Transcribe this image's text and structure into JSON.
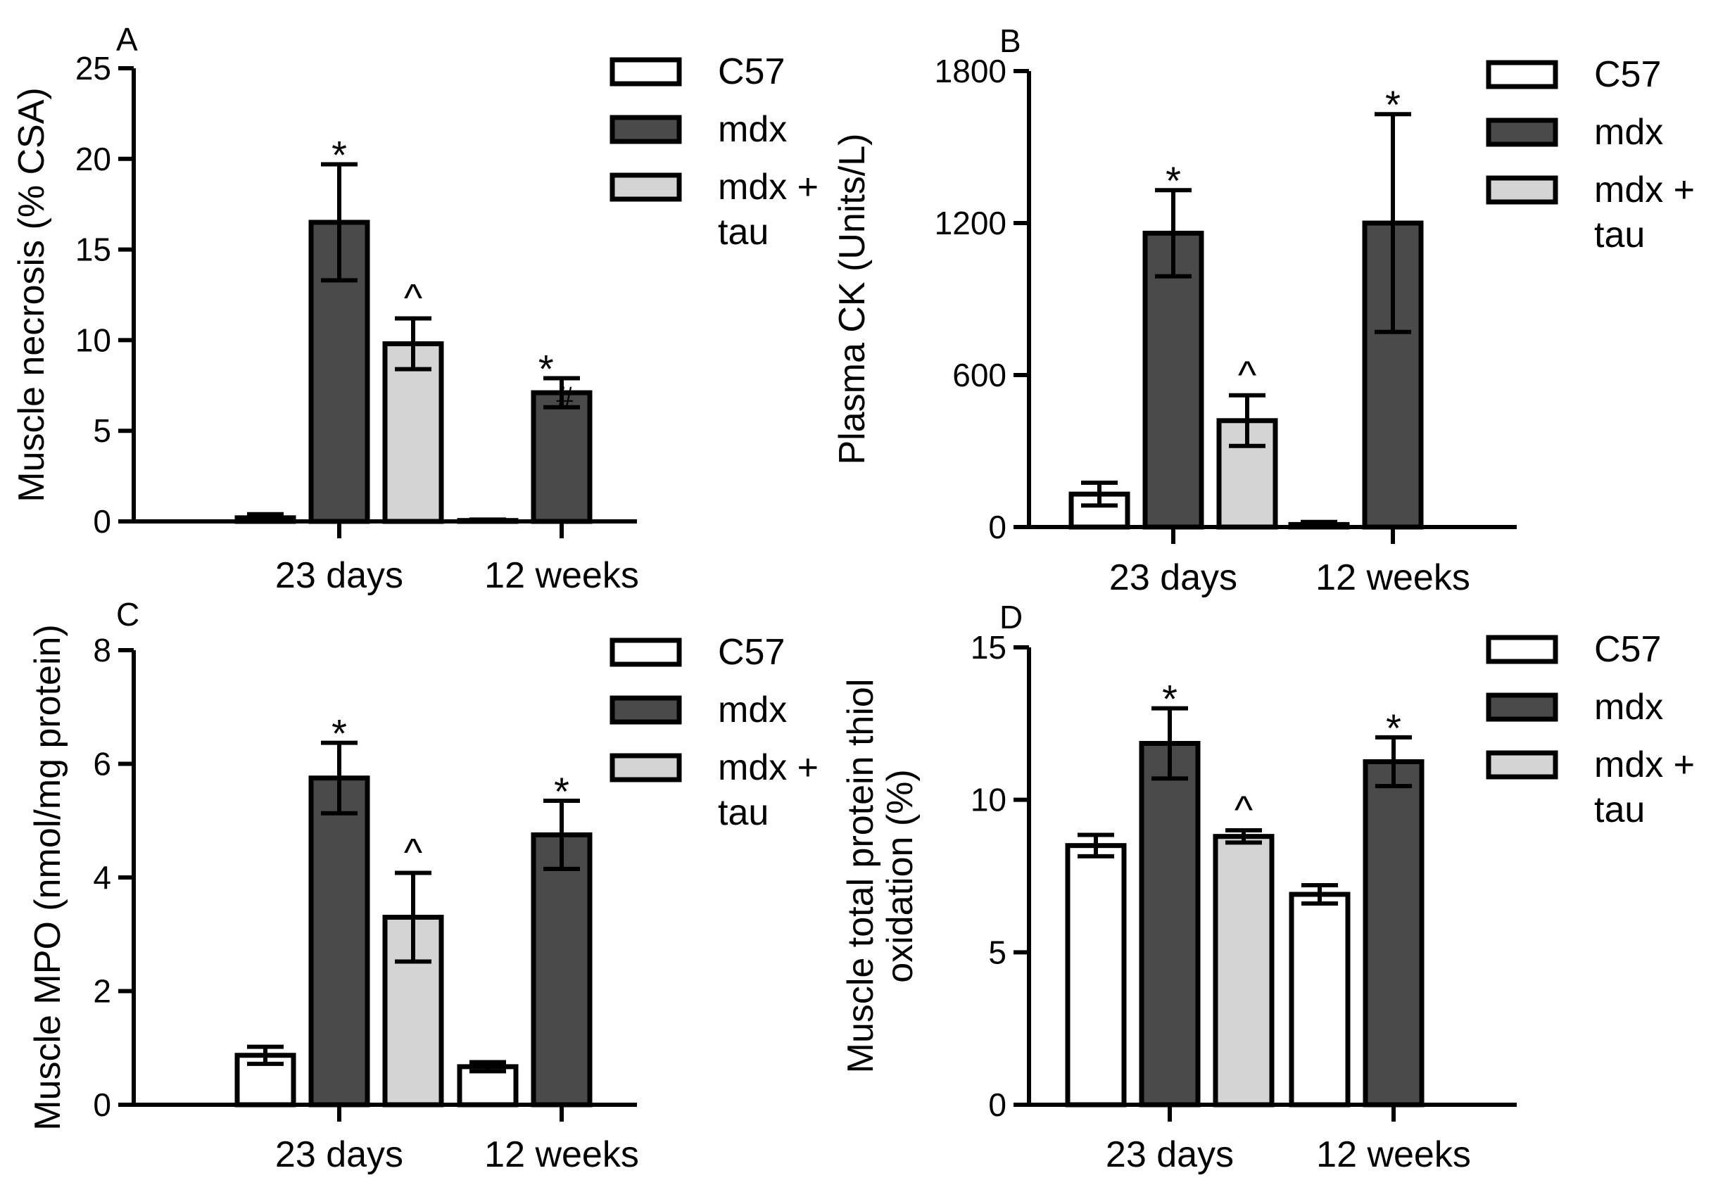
{
  "colors": {
    "C57": "#ffffff",
    "mdx": "#4a4a4a",
    "mdx + tau": "#d4d4d4",
    "stroke": "#000000"
  },
  "chart_data": [
    {
      "panel": "A",
      "type": "bar",
      "categories": [
        "23 days",
        "12 weeks"
      ],
      "ylabel": "Muscle necrosis  (% CSA)",
      "ylim": [
        0,
        25
      ],
      "yticks": [
        0,
        5,
        10,
        15,
        20,
        25
      ],
      "legend": {
        "entries": [
          "C57",
          "mdx",
          "mdx +\ntau"
        ],
        "placement": "top-right"
      },
      "series": [
        {
          "name": "C57",
          "values": [
            0.2,
            0.05
          ],
          "errors": [
            0.2,
            0.05
          ],
          "labels": [
            "",
            ""
          ]
        },
        {
          "name": "mdx",
          "values": [
            16.5,
            7.1
          ],
          "errors": [
            3.2,
            0.8
          ],
          "labels": [
            "*",
            "*#"
          ]
        },
        {
          "name": "mdx + tau",
          "values": [
            9.8,
            null
          ],
          "errors": [
            1.4,
            null
          ],
          "labels": [
            "^",
            ""
          ]
        }
      ]
    },
    {
      "panel": "B",
      "type": "bar",
      "categories": [
        "23 days",
        "12 weeks"
      ],
      "ylabel": "Plasma CK (Units/L)",
      "ylim": [
        0,
        1800
      ],
      "yticks": [
        0,
        600,
        1200,
        1800
      ],
      "legend": {
        "entries": [
          "C57",
          "mdx",
          "mdx +\ntau"
        ],
        "placement": "top-right"
      },
      "series": [
        {
          "name": "C57",
          "values": [
            130,
            10
          ],
          "errors": [
            45,
            10
          ],
          "labels": [
            "",
            ""
          ]
        },
        {
          "name": "mdx",
          "values": [
            1160,
            1200
          ],
          "errors": [
            170,
            430
          ],
          "labels": [
            "*",
            "*"
          ]
        },
        {
          "name": "mdx + tau",
          "values": [
            420,
            null
          ],
          "errors": [
            100,
            null
          ],
          "labels": [
            "^",
            ""
          ]
        }
      ]
    },
    {
      "panel": "C",
      "type": "bar",
      "categories": [
        "23 days",
        "12 weeks"
      ],
      "ylabel": "Muscle MPO (nmol/mg protein)",
      "ylim": [
        0,
        8
      ],
      "yticks": [
        0,
        2,
        4,
        6,
        8
      ],
      "legend": {
        "entries": [
          "C57",
          "mdx",
          "mdx +\ntau"
        ],
        "placement": "top-right"
      },
      "series": [
        {
          "name": "C57",
          "values": [
            0.87,
            0.67
          ],
          "errors": [
            0.15,
            0.08
          ],
          "labels": [
            "",
            ""
          ]
        },
        {
          "name": "mdx",
          "values": [
            5.75,
            4.75
          ],
          "errors": [
            0.62,
            0.6
          ],
          "labels": [
            "*",
            "*"
          ]
        },
        {
          "name": "mdx + tau",
          "values": [
            3.3,
            null
          ],
          "errors": [
            0.78,
            null
          ],
          "labels": [
            "^",
            ""
          ]
        }
      ]
    },
    {
      "panel": "D",
      "type": "bar",
      "categories": [
        "23 days",
        "12 weeks"
      ],
      "ylabel": "Muscle total protein thiol\noxidation (%)",
      "ylim": [
        0,
        15
      ],
      "yticks": [
        0,
        5,
        10,
        15
      ],
      "legend": {
        "entries": [
          "C57",
          "mdx",
          "mdx +\ntau"
        ],
        "placement": "top-right"
      },
      "series": [
        {
          "name": "C57",
          "values": [
            8.5,
            6.9
          ],
          "errors": [
            0.35,
            0.3
          ],
          "labels": [
            "",
            ""
          ]
        },
        {
          "name": "mdx",
          "values": [
            11.85,
            11.25
          ],
          "errors": [
            1.15,
            0.8
          ],
          "labels": [
            "*",
            "*"
          ]
        },
        {
          "name": "mdx + tau",
          "values": [
            8.8,
            null
          ],
          "errors": [
            0.2,
            null
          ],
          "labels": [
            "^",
            ""
          ]
        }
      ]
    }
  ]
}
